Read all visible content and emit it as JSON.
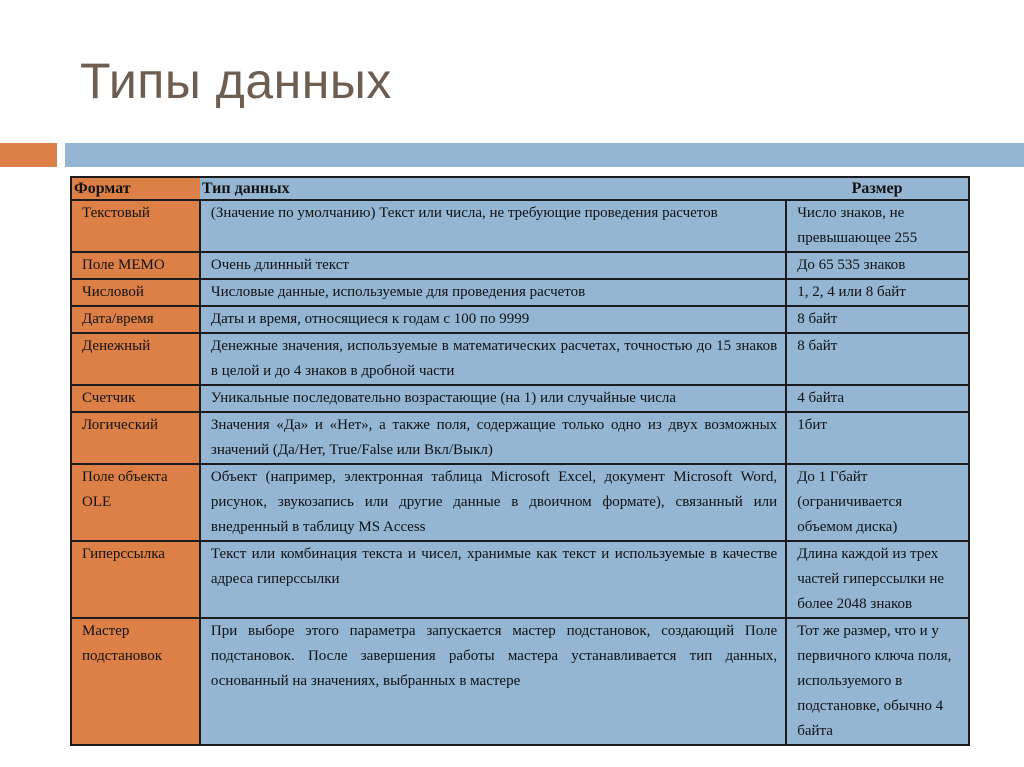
{
  "title": "Типы данных",
  "colors": {
    "accent_orange": "#dd8047",
    "accent_blue": "#94b6d2",
    "title": "#6e5e52"
  },
  "table": {
    "headers": [
      "Формат",
      "Тип данных",
      "Размер"
    ],
    "rows": [
      {
        "format": "Текстовый",
        "type": "(Значение по умолчанию) Текст или числа, не требующие проведения расчетов",
        "size": "Число знаков, не превышающее 255"
      },
      {
        "format": "Поле МЕМО",
        "type": "Очень длинный текст",
        "size": "До 65 535 знаков"
      },
      {
        "format": "Числовой",
        "type": "Числовые данные, используемые для проведения расчетов",
        "size": "1, 2, 4 или 8 байт"
      },
      {
        "format": "Дата/время",
        "type": "Даты и время, относящиеся к годам с 100 по 9999",
        "size": "8 байт"
      },
      {
        "format": "Денежный",
        "type": "Денежные значения, используемые в математических расчетах, точностью до 15 знаков в целой и до 4 знаков в дробной части",
        "size": "8 байт"
      },
      {
        "format": "Счетчик",
        "type": "Уникальные последовательно возрастающие (на 1) или случайные числа",
        "size": "4 байта"
      },
      {
        "format": "Логический",
        "type": "Значения «Да» и «Нет», а также поля, содержащие только одно из двух возможных значений (Да/Нет, True/False или Вкл/Выкл)",
        "size": "1бит"
      },
      {
        "format": "Поле объекта OLE",
        "type": "Объект (например, электронная таблица Microsoft Excel, документ Microsoft Word, рисунок, звукозапись или другие данные в двоичном формате), связанный или внедренный в таблицу MS Access",
        "size": "До 1 Гбайт (ограничивается объемом диска)"
      },
      {
        "format": "Гиперссылка",
        "type": "Текст или комбинация текста и чисел, хранимые как текст и используемые в качестве адреса гиперссылки",
        "size": "Длина каждой из трех частей гиперссылки не более 2048 знаков"
      },
      {
        "format": "Мастер подстановок",
        "type": "При выборе этого параметра запускается мастер подстановок, создающий Поле подстановок. После завершения работы мастера устанавливается тип данных, основанный на значениях, выбранных в мастере",
        "size": "Тот же размер, что и у первичного ключа поля, используемого в подстановке, обычно 4 байта"
      }
    ]
  }
}
